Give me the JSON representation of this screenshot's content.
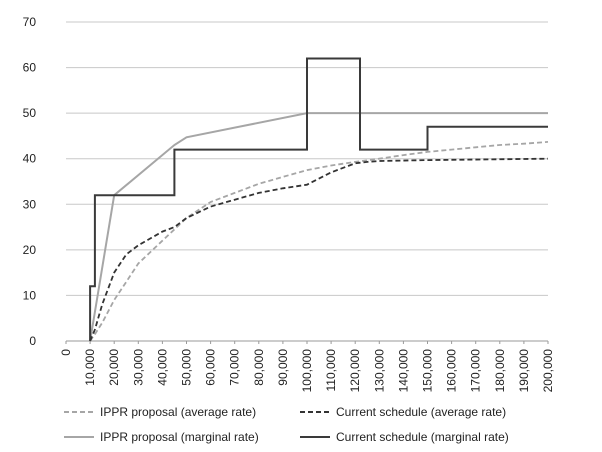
{
  "chart_data": {
    "type": "line",
    "title": "",
    "xlabel": "",
    "ylabel": "",
    "xlim": [
      0,
      200000
    ],
    "ylim": [
      0,
      70
    ],
    "grid": true,
    "legend_position": "bottom",
    "y_ticks": [
      "0",
      "10",
      "20",
      "30",
      "40",
      "50",
      "60",
      "70"
    ],
    "x_ticks": [
      "0",
      "10,000",
      "20,000",
      "30,000",
      "40,000",
      "50,000",
      "60,000",
      "70,000",
      "80,000",
      "90,000",
      "100,000",
      "110,000",
      "120,000",
      "130,000",
      "140,000",
      "150,000",
      "160,000",
      "170,000",
      "180,000",
      "190,000",
      "200,000"
    ],
    "series": [
      {
        "name": "IPPR proposal (average rate)",
        "style": "dashed",
        "color": "#a6a6a6",
        "x": [
          10000,
          12000,
          15000,
          20000,
          25000,
          30000,
          40000,
          50000,
          60000,
          70000,
          80000,
          90000,
          100000,
          110000,
          120000,
          130000,
          140000,
          150000,
          160000,
          170000,
          180000,
          190000,
          200000
        ],
        "y": [
          0,
          1.5,
          4,
          9,
          13,
          17,
          22,
          27,
          30.5,
          32.5,
          34.5,
          36,
          37.5,
          38.5,
          39.3,
          40,
          40.8,
          41.5,
          42,
          42.5,
          43,
          43.3,
          43.7
        ]
      },
      {
        "name": "IPPR proposal (marginal rate)",
        "style": "solid",
        "color": "#a6a6a6",
        "x": [
          10000,
          20000,
          45000,
          50000,
          100000,
          200000
        ],
        "y": [
          0,
          32,
          43,
          44.7,
          50,
          50
        ]
      },
      {
        "name": "Current schedule (average rate)",
        "style": "dashed",
        "color": "#333333",
        "x": [
          10000,
          12000,
          15000,
          20000,
          25000,
          30000,
          40000,
          45000,
          50000,
          60000,
          70000,
          80000,
          90000,
          100000,
          110000,
          120000,
          125000,
          130000,
          150000,
          200000
        ],
        "y": [
          0,
          2.5,
          8,
          15,
          19,
          21,
          24,
          25,
          27,
          29.5,
          31,
          32.5,
          33.5,
          34.3,
          37,
          39,
          39.3,
          39.5,
          39.7,
          40
        ]
      },
      {
        "name": "Current schedule (marginal rate)",
        "style": "solid",
        "color": "#3a3a3a",
        "x": [
          10000,
          10000,
          12000,
          12000,
          45000,
          45000,
          100000,
          100000,
          122000,
          122000,
          150000,
          150000,
          200000
        ],
        "y": [
          0,
          12,
          12,
          32,
          32,
          42,
          42,
          62,
          62,
          42,
          42,
          47,
          47
        ]
      }
    ]
  }
}
